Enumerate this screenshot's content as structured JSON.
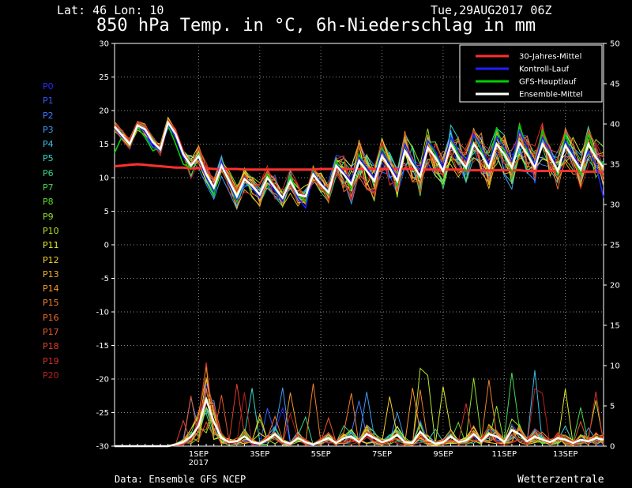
{
  "header": {
    "latlon": "Lat: 46 Lon: 10",
    "date": "Tue,29AUG2017 06Z",
    "title": "850 hPa Temp. in °C, 6h-Niederschlag in mm"
  },
  "footer": {
    "source": "Data: Ensemble GFS NCEP",
    "brand": "Wetterzentrale"
  },
  "members": [
    {
      "label": "P0",
      "color": "#2a2aff"
    },
    {
      "label": "P1",
      "color": "#2f5cff"
    },
    {
      "label": "P2",
      "color": "#3b7cff"
    },
    {
      "label": "P3",
      "color": "#3d9cf5"
    },
    {
      "label": "P4",
      "color": "#3bbfe8"
    },
    {
      "label": "P5",
      "color": "#36d4c8"
    },
    {
      "label": "P6",
      "color": "#35d68a"
    },
    {
      "label": "P7",
      "color": "#45d94f"
    },
    {
      "label": "P8",
      "color": "#5fdc2c"
    },
    {
      "label": "P9",
      "color": "#8fe02a"
    },
    {
      "label": "P10",
      "color": "#b7e52a"
    },
    {
      "label": "P11",
      "color": "#e0e82a"
    },
    {
      "label": "P12",
      "color": "#f2d22a"
    },
    {
      "label": "P13",
      "color": "#f5b52a"
    },
    {
      "label": "P14",
      "color": "#f59a2a"
    },
    {
      "label": "P15",
      "color": "#f27f2a"
    },
    {
      "label": "P16",
      "color": "#ee6a2a"
    },
    {
      "label": "P17",
      "color": "#e8552a"
    },
    {
      "label": "P18",
      "color": "#e0402a"
    },
    {
      "label": "P19",
      "color": "#d42e2a"
    },
    {
      "label": "P20",
      "color": "#b8201e"
    }
  ],
  "chart_data": {
    "type": "line",
    "title": "850 hPa Temp. in °C, 6h-Niederschlag in mm",
    "x_start": "2017-08-29T06:00Z",
    "x_step_hours": 6,
    "x_ticks": [
      {
        "label": "1SEP",
        "sub": "2017",
        "step": 11
      },
      {
        "label": "3SEP",
        "step": 19
      },
      {
        "label": "5SEP",
        "step": 27
      },
      {
        "label": "7SEP",
        "step": 35
      },
      {
        "label": "9SEP",
        "step": 43
      },
      {
        "label": "11SEP",
        "step": 51
      },
      {
        "label": "13SEP",
        "step": 59
      }
    ],
    "x_max_step": 64,
    "y_left": {
      "min": -30,
      "max": 30,
      "ticks": [
        -30,
        -25,
        -20,
        -15,
        -10,
        -5,
        0,
        5,
        10,
        15,
        20,
        25,
        30
      ]
    },
    "y_right": {
      "min": 0,
      "max": 50,
      "ticks": [
        0,
        5,
        10,
        15,
        20,
        25,
        30,
        35,
        40,
        45,
        50
      ]
    },
    "grid": true,
    "legend_position": "top-right",
    "legend": [
      {
        "name": "30-Jahres-Mittel",
        "color": "#ff3030"
      },
      {
        "name": "Kontroll-Lauf",
        "color": "#2020ff"
      },
      {
        "name": "GFS-Hauptlauf",
        "color": "#00d000"
      },
      {
        "name": "Ensemble-Mittel",
        "color": "#ffffff"
      }
    ],
    "climate_mean": [
      11.7,
      11.8,
      11.9,
      12.0,
      11.9,
      11.8,
      11.7,
      11.6,
      11.5,
      11.5,
      11.4,
      11.4,
      11.4,
      11.3,
      11.3,
      11.3,
      11.3,
      11.2,
      11.2,
      11.2,
      11.2,
      11.2,
      11.2,
      11.2,
      11.2,
      11.2,
      11.2,
      11.3,
      11.3,
      11.3,
      11.3,
      11.3,
      11.3,
      11.3,
      11.3,
      11.3,
      11.3,
      11.3,
      11.3,
      11.3,
      11.2,
      11.2,
      11.2,
      11.2,
      11.2,
      11.2,
      11.1,
      11.1,
      11.1,
      11.1,
      11.1,
      11.1,
      11.1,
      11.1,
      11.0,
      11.0,
      11.0,
      11.0,
      11.0,
      11.0,
      11.0,
      10.9,
      10.9,
      10.9,
      10.8
    ],
    "ensemble_mean_temp": [
      17.6,
      16.3,
      15.0,
      17.8,
      17.2,
      15.3,
      14.2,
      18.2,
      16.5,
      13.5,
      11.8,
      13.2,
      10.5,
      8.5,
      11.8,
      9.5,
      7.2,
      9.8,
      8.8,
      7.5,
      10.0,
      8.5,
      7.0,
      9.5,
      7.5,
      7.2,
      10.5,
      9.0,
      7.8,
      11.8,
      10.5,
      9.0,
      12.5,
      11.0,
      9.5,
      13.2,
      11.5,
      9.5,
      14.0,
      12.0,
      10.2,
      14.5,
      13.0,
      11.0,
      15.0,
      13.0,
      11.5,
      15.0,
      13.5,
      11.5,
      15.0,
      13.5,
      11.5,
      15.2,
      13.5,
      11.5,
      15.0,
      13.2,
      11.0,
      14.8,
      13.0,
      11.2,
      15.0,
      13.0,
      11.5
    ],
    "gfs_main_temp": [
      13.7,
      16.2,
      14.8,
      17.5,
      16.0,
      14.0,
      14.5,
      17.8,
      15.0,
      12.0,
      11.5,
      13.5,
      10.0,
      7.5,
      12.0,
      9.0,
      6.5,
      10.0,
      8.5,
      7.0,
      10.5,
      8.2,
      6.5,
      10.2,
      7.5,
      6.5,
      11.0,
      9.0,
      7.5,
      12.5,
      10.5,
      8.5,
      13.5,
      11.0,
      9.5,
      14.5,
      12.0,
      9.0,
      15.0,
      12.5,
      10.0,
      15.5,
      13.5,
      11.0,
      16.0,
      13.5,
      11.0,
      16.5,
      14.0,
      11.5,
      17.5,
      14.0,
      11.0,
      18.0,
      14.0,
      11.5,
      17.0,
      13.5,
      10.5,
      16.5,
      13.0,
      10.5,
      16.5,
      13.0,
      12.0
    ],
    "control_temp": [
      17.5,
      16.0,
      15.2,
      17.8,
      16.8,
      15.0,
      14.0,
      18.0,
      16.0,
      13.0,
      12.0,
      13.0,
      10.0,
      8.0,
      12.5,
      9.0,
      6.8,
      10.0,
      8.5,
      7.0,
      10.0,
      8.0,
      6.5,
      9.5,
      7.0,
      5.5,
      10.8,
      9.2,
      8.0,
      12.0,
      10.8,
      9.5,
      13.0,
      11.5,
      10.0,
      14.0,
      12.0,
      10.0,
      15.0,
      12.5,
      11.0,
      15.5,
      14.0,
      11.5,
      16.0,
      14.0,
      12.5,
      16.5,
      14.5,
      12.0,
      16.0,
      14.5,
      12.5,
      17.0,
      14.5,
      12.0,
      16.0,
      14.0,
      11.0,
      15.5,
      13.5,
      11.5,
      14.0,
      12.0,
      7.0
    ],
    "ensemble_mean_precip": [
      0,
      0,
      0,
      0,
      0,
      0,
      0,
      0,
      0.2,
      0.5,
      1.2,
      2.5,
      5.8,
      3.0,
      1.0,
      0.5,
      0.6,
      1.2,
      0.5,
      0.3,
      0.8,
      1.5,
      0.6,
      0.3,
      1.0,
      0.5,
      0.2,
      0.6,
      1.0,
      0.4,
      1.0,
      1.2,
      0.5,
      1.5,
      1.0,
      0.5,
      0.8,
      1.4,
      0.5,
      0.4,
      1.8,
      0.8,
      0.3,
      0.5,
      1.2,
      0.5,
      0.7,
      1.5,
      0.6,
      1.5,
      1.2,
      0.5,
      2.0,
      1.5,
      0.6,
      1.2,
      0.8,
      0.5,
      1.0,
      0.8,
      0.4,
      0.8,
      0.6,
      1.0,
      0.8
    ]
  }
}
